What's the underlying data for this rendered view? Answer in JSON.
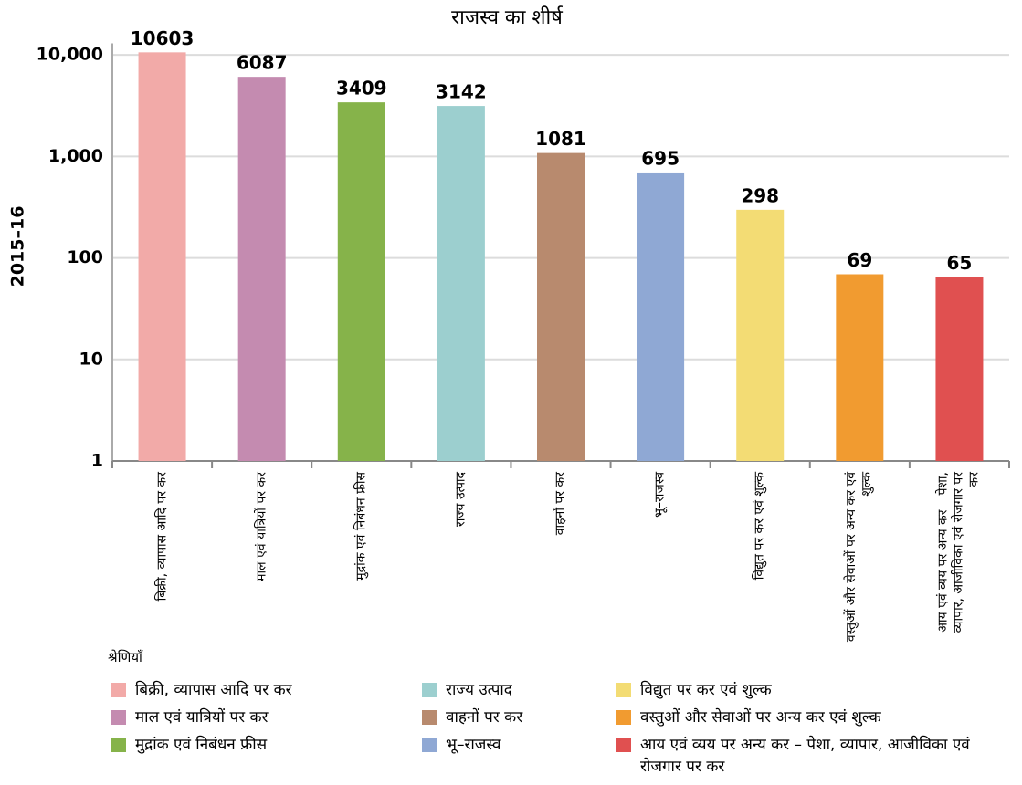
{
  "chart_data": {
    "type": "bar",
    "title": "राजस्व का शीर्ष",
    "y_label": "2015–16",
    "categories": [
      "बिक्री, व्यापास आदि पर कर",
      "माल एवं यात्रियों पर कर",
      "मुद्रांक एवं निबंधन फ्रीस",
      "राज्य उत्पाद",
      "वाहनों पर कर",
      "भू–राजस्व",
      "विद्युत पर कर एवं शुल्क",
      "वस्तुओं और सेवाओं पर अन्य कर एवं शुल्क",
      "आय एवं व्यय पर अन्य कर – पेशा, व्यापार, आजीविका एवं रोजगार पर कर"
    ],
    "values": [
      10603,
      6087,
      3409,
      3142,
      1081,
      695,
      298,
      69,
      65
    ],
    "colors": [
      "#f2aaa8",
      "#c48bb0",
      "#86b34a",
      "#9ccfcf",
      "#b88a6e",
      "#8fa8d4",
      "#f3dc74",
      "#f19b30",
      "#e05050"
    ],
    "ylim": [
      1,
      13000
    ],
    "yticks": [
      1,
      10,
      100,
      {
        "value": 1000,
        "label": "1,000"
      },
      {
        "value": 10000,
        "label": "10,000"
      }
    ],
    "log_scale": true,
    "grid": true,
    "legend_title": "श्रेणियाँ"
  }
}
